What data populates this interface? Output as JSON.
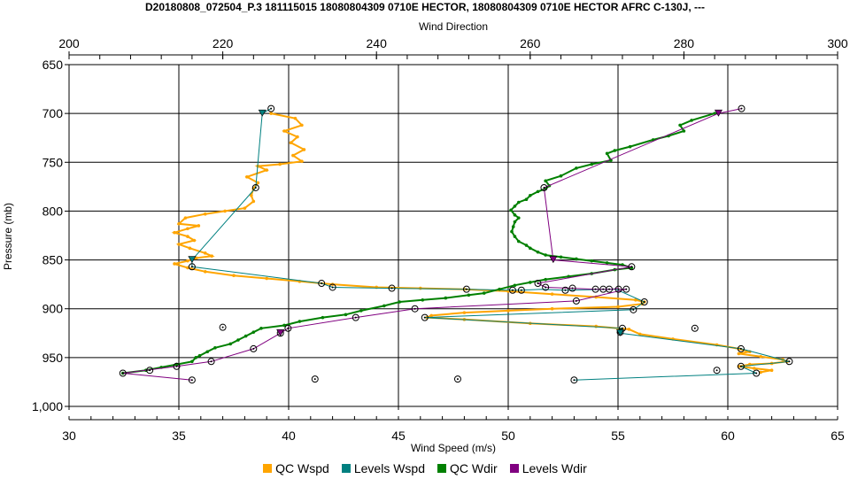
{
  "chart_data": {
    "type": "line",
    "title": "D20180808_072504_P.3 181115015 18080804309 0710E HECTOR, 18080804309 0710E HECTOR AFRC C-130J, ---",
    "x_top_label": "Wind Direction",
    "x_bottom_label": "Wind Speed (m/s)",
    "ylabel": "Pressure (mb)",
    "x_top_range": [
      200,
      300
    ],
    "x_top_ticks": [
      "200",
      "220",
      "240",
      "260",
      "280",
      "300"
    ],
    "x_bottom_range": [
      30,
      65
    ],
    "x_bottom_ticks": [
      "30",
      "35",
      "40",
      "45",
      "50",
      "55",
      "60",
      "65"
    ],
    "y_range": [
      650,
      1000
    ],
    "y_inverted": true,
    "y_ticks": [
      "650",
      "700",
      "750",
      "800",
      "850",
      "900",
      "950",
      "1,000"
    ],
    "grid": true,
    "legend_position": "bottom",
    "series": [
      {
        "name": "QC Wspd",
        "axis": "bottom",
        "color": "#FFA500",
        "points": [
          [
            39.2,
            700
          ],
          [
            40.3,
            705
          ],
          [
            40.6,
            712
          ],
          [
            39.8,
            718
          ],
          [
            40.4,
            724
          ],
          [
            40.1,
            730
          ],
          [
            40.7,
            737
          ],
          [
            40.2,
            743
          ],
          [
            40.6,
            749
          ],
          [
            39.6,
            752
          ],
          [
            38.6,
            754
          ],
          [
            39.0,
            758
          ],
          [
            38.1,
            765
          ],
          [
            38.6,
            771
          ],
          [
            38.4,
            777
          ],
          [
            38.3,
            784
          ],
          [
            38.4,
            790
          ],
          [
            38.0,
            797
          ],
          [
            37.1,
            800
          ],
          [
            36.2,
            803
          ],
          [
            35.3,
            807
          ],
          [
            35.0,
            813
          ],
          [
            35.9,
            815
          ],
          [
            35.4,
            818
          ],
          [
            34.8,
            822
          ],
          [
            35.4,
            826
          ],
          [
            35.7,
            830
          ],
          [
            35.0,
            834
          ],
          [
            35.5,
            838
          ],
          [
            36.2,
            843
          ],
          [
            36.5,
            846
          ],
          [
            35.8,
            848
          ],
          [
            35.4,
            851
          ],
          [
            34.8,
            854
          ],
          [
            35.4,
            858
          ],
          [
            36.2,
            862
          ],
          [
            37.5,
            866
          ],
          [
            39.0,
            869
          ],
          [
            40.5,
            872
          ],
          [
            42.0,
            875
          ],
          [
            44.0,
            878
          ],
          [
            46.0,
            879
          ],
          [
            48.0,
            880
          ],
          [
            50.0,
            882
          ],
          [
            52.0,
            885
          ],
          [
            54.0,
            888
          ],
          [
            55.8,
            891
          ],
          [
            56.2,
            893
          ],
          [
            56.1,
            895
          ],
          [
            55.0,
            898
          ],
          [
            52.0,
            900
          ],
          [
            50.0,
            902
          ],
          [
            48.0,
            904
          ],
          [
            46.5,
            907
          ],
          [
            46.3,
            909
          ],
          [
            48.0,
            911
          ],
          [
            51.0,
            915
          ],
          [
            54.0,
            918
          ],
          [
            55.5,
            921
          ],
          [
            56.0,
            926
          ],
          [
            57.5,
            931
          ],
          [
            59.5,
            937
          ],
          [
            60.5,
            941
          ],
          [
            61.0,
            944
          ],
          [
            60.5,
            946
          ],
          [
            61.5,
            949
          ],
          [
            62.5,
            952
          ],
          [
            62.7,
            954
          ],
          [
            62.0,
            956
          ],
          [
            61.0,
            957
          ],
          [
            60.5,
            959
          ],
          [
            61.2,
            961
          ],
          [
            62.0,
            963
          ],
          [
            61.5,
            965
          ]
        ]
      },
      {
        "name": "Levels Wspd",
        "axis": "bottom",
        "color": "#008080",
        "points": [
          [
            39.2,
            695
          ],
          [
            38.8,
            700
          ],
          [
            38.5,
            776
          ],
          [
            35.6,
            850
          ],
          [
            35.6,
            857
          ],
          [
            41.5,
            874
          ],
          [
            42.0,
            878
          ],
          [
            44.7,
            879
          ],
          [
            48.1,
            880
          ],
          [
            50.2,
            881
          ],
          [
            50.6,
            881
          ],
          [
            51.5,
            880
          ],
          [
            52.6,
            881
          ],
          [
            54.6,
            880
          ],
          [
            54.9,
            880
          ],
          [
            56.2,
            893
          ],
          [
            55.7,
            901
          ],
          [
            46.2,
            909
          ],
          [
            55.2,
            920
          ],
          [
            55.1,
            924
          ],
          [
            55.1,
            925
          ],
          [
            60.6,
            941
          ],
          [
            62.8,
            954
          ],
          [
            60.6,
            959
          ],
          [
            61.3,
            966
          ],
          [
            53.0,
            973
          ]
        ]
      },
      {
        "name": "QC Wdir",
        "axis": "top",
        "color": "#008000",
        "points": [
          [
            284,
            700
          ],
          [
            281,
            707
          ],
          [
            279.5,
            712
          ],
          [
            280,
            718
          ],
          [
            278,
            723
          ],
          [
            276,
            727
          ],
          [
            273,
            734
          ],
          [
            271,
            738
          ],
          [
            270,
            741
          ],
          [
            270.5,
            748
          ],
          [
            268,
            752
          ],
          [
            266,
            756
          ],
          [
            264,
            764
          ],
          [
            262,
            769
          ],
          [
            262.5,
            774
          ],
          [
            262,
            777
          ],
          [
            261,
            780
          ],
          [
            260,
            784
          ],
          [
            259.5,
            788
          ],
          [
            258.5,
            791
          ],
          [
            258,
            795
          ],
          [
            257.5,
            799
          ],
          [
            258,
            804
          ],
          [
            258.5,
            807
          ],
          [
            258,
            811
          ],
          [
            257.8,
            816
          ],
          [
            257.6,
            821
          ],
          [
            258,
            826
          ],
          [
            258.5,
            831
          ],
          [
            259.5,
            835
          ],
          [
            260,
            838
          ],
          [
            261,
            842
          ],
          [
            262,
            845
          ],
          [
            264,
            847
          ],
          [
            266,
            849
          ],
          [
            268,
            851
          ],
          [
            270,
            853
          ],
          [
            272,
            855
          ],
          [
            273.2,
            858
          ],
          [
            271,
            860
          ],
          [
            268,
            864
          ],
          [
            265,
            867
          ],
          [
            262,
            870
          ],
          [
            260,
            873
          ],
          [
            258,
            876
          ],
          [
            256,
            880
          ],
          [
            254,
            884
          ],
          [
            252,
            886
          ],
          [
            249,
            889
          ],
          [
            246,
            891
          ],
          [
            243,
            893
          ],
          [
            241,
            897
          ],
          [
            238,
            902
          ],
          [
            236,
            906
          ],
          [
            233,
            909
          ],
          [
            230,
            913
          ],
          [
            228,
            917
          ],
          [
            225,
            920
          ],
          [
            224,
            924
          ],
          [
            223,
            928
          ],
          [
            222,
            932
          ],
          [
            221,
            936
          ],
          [
            219,
            940
          ],
          [
            218,
            944
          ],
          [
            217,
            948
          ],
          [
            216.5,
            950
          ],
          [
            216,
            954
          ],
          [
            214,
            957
          ],
          [
            212,
            960
          ],
          [
            210,
            963
          ],
          [
            207,
            966
          ]
        ]
      },
      {
        "name": "Levels Wdir",
        "axis": "top",
        "color": "#800080",
        "points": [
          [
            287.5,
            695
          ],
          [
            284.5,
            700
          ],
          [
            261.8,
            776
          ],
          [
            263.0,
            850
          ],
          [
            273.2,
            857
          ],
          [
            261.0,
            874
          ],
          [
            262.0,
            878
          ],
          [
            265.5,
            879
          ],
          [
            268.5,
            880
          ],
          [
            269.5,
            880
          ],
          [
            270.5,
            880
          ],
          [
            271.4,
            879
          ],
          [
            271.5,
            880
          ],
          [
            272.5,
            880
          ],
          [
            266.0,
            892
          ],
          [
            245.0,
            900
          ],
          [
            237.3,
            909
          ],
          [
            228.5,
            920
          ],
          [
            227.5,
            925
          ],
          [
            224.0,
            941
          ],
          [
            218.5,
            954
          ],
          [
            214.0,
            959
          ],
          [
            207.0,
            966
          ],
          [
            216.0,
            973
          ]
        ]
      }
    ],
    "circle_markers_bottom": [
      [
        39.2,
        695
      ],
      [
        38.5,
        776
      ],
      [
        35.6,
        857
      ],
      [
        41.5,
        874
      ],
      [
        42.0,
        878
      ],
      [
        44.7,
        879
      ],
      [
        48.1,
        880
      ],
      [
        50.2,
        881
      ],
      [
        50.6,
        881
      ],
      [
        52.6,
        881
      ],
      [
        54.6,
        880
      ],
      [
        56.2,
        893
      ],
      [
        55.7,
        901
      ],
      [
        46.2,
        909
      ],
      [
        55.2,
        920
      ],
      [
        55.1,
        924
      ],
      [
        60.6,
        941
      ],
      [
        62.8,
        954
      ],
      [
        60.6,
        959
      ],
      [
        61.3,
        966
      ],
      [
        59.5,
        963
      ],
      [
        53.0,
        973
      ],
      [
        37.0,
        919
      ],
      [
        58.5,
        920
      ],
      [
        41.2,
        972
      ],
      [
        47.7,
        972
      ]
    ],
    "circle_markers_top": [
      [
        287.5,
        695
      ],
      [
        261.8,
        776
      ],
      [
        273.2,
        857
      ],
      [
        261.0,
        874
      ],
      [
        262.0,
        878
      ],
      [
        265.5,
        879
      ],
      [
        268.5,
        880
      ],
      [
        269.5,
        880
      ],
      [
        271.5,
        880
      ],
      [
        272.5,
        880
      ],
      [
        266.0,
        892
      ],
      [
        245.0,
        900
      ],
      [
        237.3,
        909
      ],
      [
        228.5,
        920
      ],
      [
        227.5,
        925
      ],
      [
        224.0,
        941
      ],
      [
        218.5,
        954
      ],
      [
        214.0,
        959
      ],
      [
        207.0,
        966
      ],
      [
        216.0,
        973
      ],
      [
        210.5,
        963
      ]
    ],
    "triangle_markers": [
      {
        "axis": "bottom",
        "x": 38.8,
        "y": 700,
        "color": "#008080"
      },
      {
        "axis": "bottom",
        "x": 35.6,
        "y": 850,
        "color": "#008080"
      },
      {
        "axis": "bottom",
        "x": 55.1,
        "y": 925,
        "color": "#008080"
      },
      {
        "axis": "top",
        "x": 284.5,
        "y": 700,
        "color": "#800080"
      },
      {
        "axis": "top",
        "x": 263.0,
        "y": 850,
        "color": "#800080"
      },
      {
        "axis": "top",
        "x": 227.5,
        "y": 925,
        "color": "#800080"
      }
    ]
  }
}
